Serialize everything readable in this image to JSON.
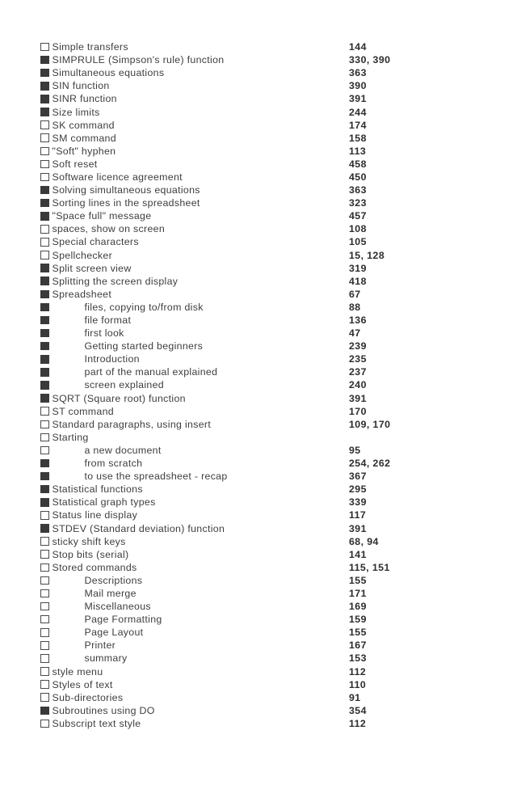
{
  "page": {
    "background": "#ffffff",
    "text_color": "#3e3e3e",
    "page_number_color": "#2e2e2e",
    "checkbox_fill_color": "#3a3a3a",
    "checkbox_border_color": "#4a4a4a"
  },
  "index": {
    "entries": [
      {
        "label": "Simple transfers",
        "pages": "144",
        "checkbox": "empty",
        "indent": 0
      },
      {
        "label": "SIMPRULE (Simpson's rule) function",
        "pages": "330, 390",
        "checkbox": "filled",
        "indent": 0
      },
      {
        "label": "Simultaneous equations",
        "pages": "363",
        "checkbox": "filled",
        "indent": 0
      },
      {
        "label": "SIN function",
        "pages": "390",
        "checkbox": "filled",
        "indent": 0
      },
      {
        "label": "SINR function",
        "pages": "391",
        "checkbox": "filled",
        "indent": 0
      },
      {
        "label": "Size limits",
        "pages": "244",
        "checkbox": "filled",
        "indent": 0
      },
      {
        "label": "SK command",
        "pages": "174",
        "checkbox": "empty",
        "indent": 0
      },
      {
        "label": "SM command",
        "pages": "158",
        "checkbox": "empty",
        "indent": 0
      },
      {
        "label": "\"Soft\" hyphen",
        "pages": "113",
        "checkbox": "empty",
        "indent": 0
      },
      {
        "label": "Soft reset",
        "pages": "458",
        "checkbox": "empty",
        "indent": 0
      },
      {
        "label": "Software licence agreement",
        "pages": "450",
        "checkbox": "empty",
        "indent": 0
      },
      {
        "label": "Solving simultaneous equations",
        "pages": "363",
        "checkbox": "filled",
        "indent": 0
      },
      {
        "label": "Sorting lines in the spreadsheet",
        "pages": "323",
        "checkbox": "filled",
        "indent": 0
      },
      {
        "label": "\"Space full\" message",
        "pages": "457",
        "checkbox": "filled",
        "indent": 0
      },
      {
        "label": "spaces, show on screen",
        "pages": "108",
        "checkbox": "empty",
        "indent": 0
      },
      {
        "label": "Special characters",
        "pages": "105",
        "checkbox": "empty",
        "indent": 0
      },
      {
        "label": "Spellchecker",
        "pages": "15, 128",
        "checkbox": "empty",
        "indent": 0
      },
      {
        "label": "Split screen view",
        "pages": "319",
        "checkbox": "filled",
        "indent": 0
      },
      {
        "label": "Splitting the screen display",
        "pages": "418",
        "checkbox": "filled",
        "indent": 0
      },
      {
        "label": "Spreadsheet",
        "pages": "67",
        "checkbox": "filled",
        "indent": 0
      },
      {
        "label": "files, copying to/from disk",
        "pages": "88",
        "checkbox": "filled",
        "indent": 1
      },
      {
        "label": "file format",
        "pages": "136",
        "checkbox": "filled",
        "indent": 1
      },
      {
        "label": "first look",
        "pages": "47",
        "checkbox": "filled",
        "indent": 1
      },
      {
        "label": "Getting started beginners",
        "pages": "239",
        "checkbox": "filled",
        "indent": 1
      },
      {
        "label": "Introduction",
        "pages": "235",
        "checkbox": "filled",
        "indent": 1
      },
      {
        "label": "part of the manual explained",
        "pages": "237",
        "checkbox": "filled",
        "indent": 1
      },
      {
        "label": "screen explained",
        "pages": "240",
        "checkbox": "filled",
        "indent": 1
      },
      {
        "label": "SQRT (Square root) function",
        "pages": "391",
        "checkbox": "filled",
        "indent": 0
      },
      {
        "label": "ST command",
        "pages": "170",
        "checkbox": "empty",
        "indent": 0
      },
      {
        "label": "Standard paragraphs, using insert",
        "pages": "109, 170",
        "checkbox": "empty",
        "indent": 0
      },
      {
        "label": "Starting",
        "pages": "",
        "checkbox": "empty",
        "indent": 0
      },
      {
        "label": "a new document",
        "pages": "95",
        "checkbox": "empty",
        "indent": 1
      },
      {
        "label": "from scratch",
        "pages": "254, 262",
        "checkbox": "filled",
        "indent": 1
      },
      {
        "label": "to use the spreadsheet - recap",
        "pages": "367",
        "checkbox": "filled",
        "indent": 1
      },
      {
        "label": "Statistical functions",
        "pages": "295",
        "checkbox": "filled",
        "indent": 0
      },
      {
        "label": "Statistical graph types",
        "pages": "339",
        "checkbox": "filled",
        "indent": 0
      },
      {
        "label": "Status line display",
        "pages": "117",
        "checkbox": "empty",
        "indent": 0
      },
      {
        "label": "STDEV (Standard deviation) function",
        "pages": "391",
        "checkbox": "filled",
        "indent": 0
      },
      {
        "label": "sticky shift keys",
        "pages": "68, 94",
        "checkbox": "empty",
        "indent": 0
      },
      {
        "label": "Stop bits (serial)",
        "pages": "141",
        "checkbox": "empty",
        "indent": 0
      },
      {
        "label": "Stored commands",
        "pages": "115, 151",
        "checkbox": "empty",
        "indent": 0
      },
      {
        "label": "Descriptions",
        "pages": "155",
        "checkbox": "empty",
        "indent": 1
      },
      {
        "label": "Mail merge",
        "pages": "171",
        "checkbox": "empty",
        "indent": 1
      },
      {
        "label": "Miscellaneous",
        "pages": "169",
        "checkbox": "empty",
        "indent": 1
      },
      {
        "label": "Page Formatting",
        "pages": "159",
        "checkbox": "empty",
        "indent": 1
      },
      {
        "label": "Page Layout",
        "pages": "155",
        "checkbox": "empty",
        "indent": 1
      },
      {
        "label": "Printer",
        "pages": "167",
        "checkbox": "empty",
        "indent": 1
      },
      {
        "label": "summary",
        "pages": "153",
        "checkbox": "empty",
        "indent": 1
      },
      {
        "label": "style menu",
        "pages": "112",
        "checkbox": "empty",
        "indent": 0
      },
      {
        "label": "Styles of text",
        "pages": "110",
        "checkbox": "empty",
        "indent": 0
      },
      {
        "label": "Sub-directories",
        "pages": "91",
        "checkbox": "empty",
        "indent": 0
      },
      {
        "label": "Subroutines using DO",
        "pages": "354",
        "checkbox": "filled",
        "indent": 0
      },
      {
        "label": "Subscript text style",
        "pages": "112",
        "checkbox": "empty",
        "indent": 0
      }
    ]
  }
}
